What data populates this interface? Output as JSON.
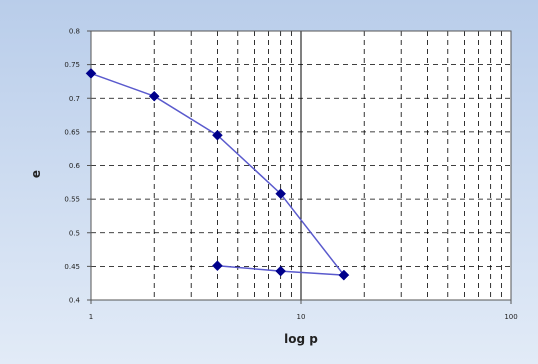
{
  "chart_data": {
    "type": "scatter",
    "xlabel": "log p",
    "ylabel": "e",
    "xscale": "log",
    "xlim": [
      1,
      100
    ],
    "ylim": [
      0.4,
      0.8
    ],
    "x_ticks": [
      "1",
      "10",
      "100"
    ],
    "y_ticks": [
      "0.4",
      "0.45",
      "0.5",
      "0.55",
      "0.6",
      "0.65",
      "0.7",
      "0.75",
      "0.8"
    ],
    "grid": true,
    "legend": "none",
    "series": [
      {
        "points": [
          {
            "x": 1,
            "y": 0.737
          },
          {
            "x": 2,
            "y": 0.703
          },
          {
            "x": 4,
            "y": 0.645
          },
          {
            "x": 8,
            "y": 0.558
          },
          {
            "x": 16,
            "y": 0.437
          }
        ]
      },
      {
        "points": [
          {
            "x": 4,
            "y": 0.451
          },
          {
            "x": 8,
            "y": 0.443
          },
          {
            "x": 16,
            "y": 0.437
          }
        ]
      }
    ]
  },
  "colors": {
    "frame_bg_top": "#b9cdea",
    "frame_bg_bottom": "#e2ebf7",
    "plot_bg": "#ffffff",
    "grid": "#000000",
    "line": "#5a5acd",
    "marker": "#00008b"
  }
}
